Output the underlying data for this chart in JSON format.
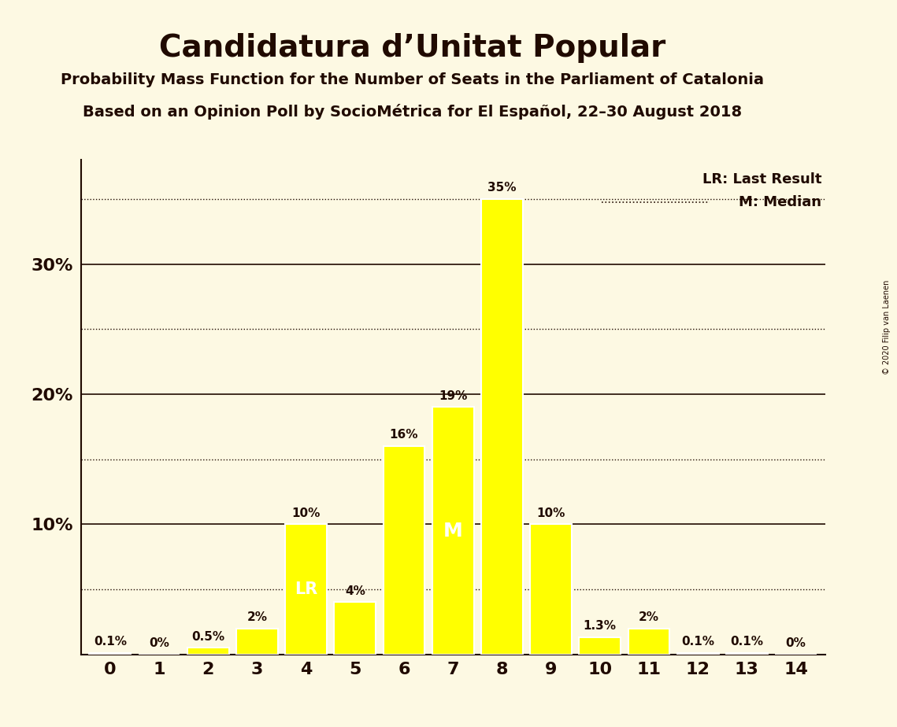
{
  "title": "Candidatura d’Unitat Popular",
  "subtitle": "Probability Mass Function for the Number of Seats in the Parliament of Catalonia",
  "subsubtitle": "Based on an Opinion Poll by SocioMétrica for El Español, 22–30 August 2018",
  "copyright": "© 2020 Filip van Laenen",
  "categories": [
    0,
    1,
    2,
    3,
    4,
    5,
    6,
    7,
    8,
    9,
    10,
    11,
    12,
    13,
    14
  ],
  "values": [
    0.1,
    0.0,
    0.5,
    2.0,
    10.0,
    4.0,
    16.0,
    19.0,
    35.0,
    10.0,
    1.3,
    2.0,
    0.1,
    0.1,
    0.0
  ],
  "bar_color": "#ffff00",
  "bar_edge_color": "#ffffff",
  "background_color": "#fdf9e3",
  "text_color": "#200a00",
  "lr_bar": 4,
  "median_bar": 7,
  "ylim": [
    0,
    38
  ],
  "solid_line_y": [
    10,
    20,
    30
  ],
  "dotted_line_y": [
    5,
    15,
    25,
    35
  ],
  "ytick_positions": [
    10,
    20,
    30
  ],
  "ytick_labels": [
    "10%",
    "20%",
    "30%"
  ],
  "lr_label": "LR",
  "median_label": "M",
  "legend_lr": "LR: Last Result",
  "legend_m": "M: Median",
  "bar_label_format": {
    "0": "0.1%",
    "1": "0%",
    "2": "0.5%",
    "3": "2%",
    "4": "10%",
    "5": "4%",
    "6": "16%",
    "7": "19%",
    "8": "35%",
    "9": "10%",
    "10": "1.3%",
    "11": "2%",
    "12": "0.1%",
    "13": "0.1%",
    "14": "0%"
  }
}
